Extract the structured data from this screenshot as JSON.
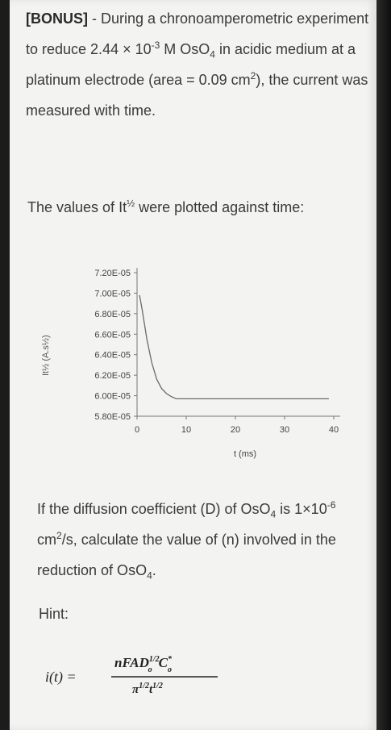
{
  "question": {
    "tag": "[BONUS]",
    "intro_a": " - During a chronoamperometric experiment to reduce 2.44 × 10",
    "conc_exp": "-3",
    "intro_b": " M OsO",
    "osO4_sub": "4",
    "intro_c": " in acidic medium at a platinum electrode (area = 0.09 cm",
    "area_exp": "2",
    "intro_d": "), the current was measured with time."
  },
  "plot_intro": {
    "text_a": "The values of It",
    "half": "½",
    "text_b": " were plotted against time:"
  },
  "chart_data": {
    "type": "line",
    "ylabel": "It½ (A.s½)",
    "xlabel": "t (ms)",
    "ylim": [
      5.8e-05,
      7.2e-05
    ],
    "xlim": [
      0,
      40
    ],
    "yticks": [
      "7.20E-05",
      "7.00E-05",
      "6.80E-05",
      "6.60E-05",
      "6.40E-05",
      "6.20E-05",
      "6.00E-05",
      "5.80E-05"
    ],
    "xticks": [
      "0",
      "10",
      "20",
      "30",
      "40"
    ],
    "series": [
      {
        "x": [
          0.5,
          1,
          2,
          3,
          4,
          5,
          6,
          7,
          8,
          10,
          15,
          20,
          30,
          39
        ],
        "y": [
          6.98e-05,
          6.85e-05,
          6.55e-05,
          6.32e-05,
          6.16e-05,
          6.07e-05,
          6.02e-05,
          5.99e-05,
          5.97e-05,
          5.97e-05,
          5.97e-05,
          5.97e-05,
          5.97e-05,
          5.97e-05
        ]
      }
    ]
  },
  "question_2": {
    "text_a": "If the diffusion coefficient (D) of OsO",
    "sub_a": "4",
    "text_b": " is 1×10",
    "exp": "-6",
    "text_c": " cm",
    "exp2": "2",
    "text_d": "/s, calculate the value of (n) involved in the reduction of OsO",
    "sub_b": "4",
    "text_e": "."
  },
  "hint": {
    "label": "Hint:",
    "lhs": "i(t) =",
    "numerator": "nFAD",
    "num_sup": "1/2",
    "num_sub": "o",
    "num_c": "C",
    "num_c_sup": "*",
    "num_c_sub": "o",
    "denominator": "π",
    "den_sup": "1/2",
    "den_t": "t",
    "den_t_sup": "1/2"
  }
}
